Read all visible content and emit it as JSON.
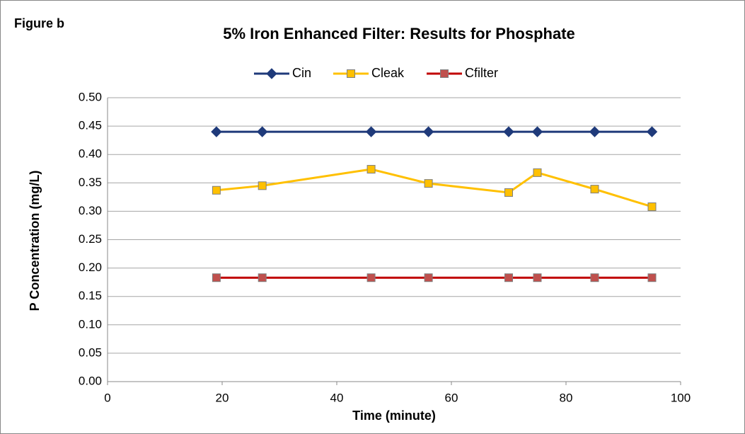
{
  "chart_data": {
    "type": "line",
    "title": "5% Iron Enhanced Filter: Results for Phosphate",
    "annotation": "Figure b",
    "x_label": "Time (minute)",
    "y_label": "P Concentration (mg/L)",
    "x": [
      19,
      27,
      46,
      56,
      70,
      75,
      85,
      95
    ],
    "series": [
      {
        "name": "Cin",
        "color": "#1f3a7a",
        "marker": "diamond",
        "marker_color": "#1f3a7a",
        "values": [
          0.44,
          0.44,
          0.44,
          0.44,
          0.44,
          0.44,
          0.44,
          0.44
        ]
      },
      {
        "name": "Cleak",
        "color": "#ffc000",
        "marker": "square",
        "marker_color": "#ffc000",
        "values": [
          0.337,
          0.345,
          0.374,
          0.349,
          0.333,
          0.368,
          0.339,
          0.308
        ]
      },
      {
        "name": "Cfilter",
        "color": "#c00000",
        "marker": "square",
        "marker_color": "#c0504d",
        "values": [
          0.183,
          0.183,
          0.183,
          0.183,
          0.183,
          0.183,
          0.183,
          0.183
        ]
      }
    ],
    "xlim": [
      0,
      100
    ],
    "xticks": [
      0,
      20,
      40,
      60,
      80,
      100
    ],
    "ylim": [
      0,
      0.5
    ],
    "yticks": [
      {
        "value": 0,
        "label": "0.00"
      },
      {
        "value": 0.05,
        "label": "0.05"
      },
      {
        "value": 0.1,
        "label": "0.10"
      },
      {
        "value": 0.15,
        "label": "0.15"
      },
      {
        "value": 0.2,
        "label": "0.20"
      },
      {
        "value": 0.25,
        "label": "0.25"
      },
      {
        "value": 0.3,
        "label": "0.30"
      },
      {
        "value": 0.35,
        "label": "0.35"
      },
      {
        "value": 0.4,
        "label": "0.40"
      },
      {
        "value": 0.45,
        "label": "0.45"
      },
      {
        "value": 0.5,
        "label": "0.50"
      }
    ],
    "grid": true,
    "legend": "top"
  }
}
